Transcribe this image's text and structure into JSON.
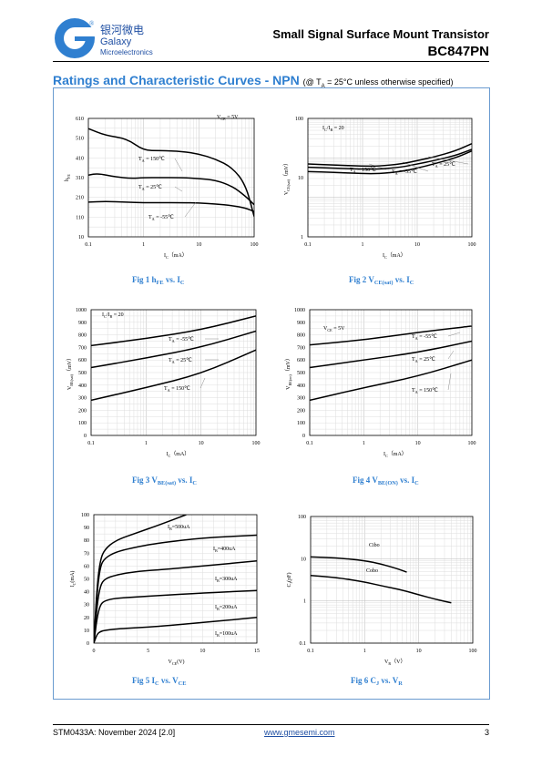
{
  "header": {
    "logo_cn": "银河微电",
    "logo_name": "Galaxy",
    "logo_sub": "Microelectronics",
    "title": "Small Signal Surface Mount Transistor",
    "part": "BC847PN"
  },
  "section": {
    "title": "Ratings and Characteristic Curves - NPN",
    "note": "(@ T",
    "note_sub": "A",
    "note_rest": " = 25°C unless otherwise specified)"
  },
  "colors": {
    "accent": "#2f7fd0",
    "frame": "#6a9bd0",
    "brand": "#1f4fa3"
  },
  "figures": [
    {
      "id": "fig1",
      "caption": "Fig 1   h",
      "cap_sub": "FE",
      "cap_rest": " vs. I",
      "cap_sub2": "C"
    },
    {
      "id": "fig2",
      "caption": "Fig 2   V",
      "cap_sub": "CE(sat)",
      "cap_rest": " vs. I",
      "cap_sub2": "C"
    },
    {
      "id": "fig3",
      "caption": "Fig 3   V",
      "cap_sub": "BE(sat)",
      "cap_rest": " vs. I",
      "cap_sub2": "C"
    },
    {
      "id": "fig4",
      "caption": "Fig 4   V",
      "cap_sub": "BE(ON)",
      "cap_rest": " vs. I",
      "cap_sub2": "C"
    },
    {
      "id": "fig5",
      "caption": "Fig 5   I",
      "cap_sub": "C",
      "cap_rest": " vs. V",
      "cap_sub2": "CE"
    },
    {
      "id": "fig6",
      "caption": "Fig 6   C",
      "cap_sub": "J",
      "cap_rest": " vs. V",
      "cap_sub2": "R"
    }
  ],
  "chart_data": [
    {
      "type": "line",
      "id": "fig1",
      "xscale": "log",
      "xlim": [
        0.1,
        100
      ],
      "ylim": [
        10,
        710
      ],
      "xticks": [
        "0.1",
        "1",
        "10",
        "100"
      ],
      "yticks": [
        "10",
        "110",
        "210",
        "310",
        "410",
        "510",
        "610"
      ],
      "ylabel": "h",
      "ylabel_sub": "FE",
      "xlabel": "I",
      "xlabel_sub": "C",
      "xlabel_unit": "（mA）",
      "annotations": [
        {
          "text": "V",
          "sub": "CE",
          "rest": " = 5V"
        }
      ],
      "series": [
        {
          "name": "T",
          "name_sub": "A",
          "name_rest": " = 150℃",
          "x": [
            0.1,
            0.2,
            0.5,
            1,
            2,
            5,
            10,
            20,
            40,
            70,
            100
          ],
          "y": [
            650,
            610,
            590,
            520,
            520,
            515,
            500,
            470,
            420,
            320,
            130
          ]
        },
        {
          "name": "T",
          "name_sub": "A",
          "name_rest": " = 25℃",
          "x": [
            0.1,
            0.15,
            0.3,
            0.6,
            1,
            2,
            5,
            10,
            20,
            40,
            70,
            100
          ],
          "y": [
            375,
            385,
            365,
            355,
            360,
            360,
            360,
            355,
            345,
            310,
            250,
            200
          ]
        },
        {
          "name": "T",
          "name_sub": "A",
          "name_rest": " = -55℃",
          "x": [
            0.1,
            0.2,
            0.5,
            1,
            2,
            5,
            10,
            20,
            40,
            70,
            100
          ],
          "y": [
            215,
            220,
            215,
            212,
            212,
            212,
            210,
            205,
            195,
            180,
            160
          ]
        }
      ]
    },
    {
      "type": "line",
      "id": "fig2",
      "xscale": "log",
      "yscale": "log",
      "xlim": [
        0.1,
        100
      ],
      "ylim": [
        1,
        1000
      ],
      "xticks": [
        "0.1",
        "1",
        "10",
        "100"
      ],
      "yticks": [
        "1",
        "10",
        "100"
      ],
      "ylabel": "V",
      "ylabel_sub": "CE(sat)",
      "ylabel_unit": "（mV）",
      "xlabel": "I",
      "xlabel_sub": "C",
      "xlabel_unit": "（mA）",
      "annotations": [
        {
          "text": "I",
          "sub": "C",
          "rest": "/I",
          "sub2": "B",
          "rest2": " = 20"
        }
      ],
      "series": [
        {
          "name": "T",
          "name_sub": "A",
          "name_rest": " = 150℃",
          "x": [
            0.1,
            0.3,
            1,
            2,
            5,
            10,
            20,
            50,
            100
          ],
          "y": [
            45,
            43,
            40,
            40,
            45,
            55,
            70,
            100,
            150
          ]
        },
        {
          "name": "T",
          "name_sub": "A",
          "name_rest": " = -55℃",
          "x": [
            0.1,
            0.3,
            1,
            2,
            5,
            10,
            20,
            50,
            100
          ],
          "y": [
            58,
            55,
            52,
            52,
            58,
            70,
            85,
            115,
            165
          ]
        },
        {
          "name": "T",
          "name_sub": "A",
          "name_rest": " = 25℃",
          "x": [
            0.1,
            0.3,
            1,
            2,
            5,
            10,
            20,
            50,
            100
          ],
          "y": [
            70,
            66,
            62,
            62,
            70,
            85,
            105,
            150,
            230
          ]
        }
      ]
    },
    {
      "type": "line",
      "id": "fig3",
      "xscale": "log",
      "xlim": [
        0.1,
        100
      ],
      "ylim": [
        0,
        1000
      ],
      "xticks": [
        "0.1",
        "1",
        "10",
        "100"
      ],
      "yticks": [
        "0",
        "100",
        "200",
        "300",
        "400",
        "500",
        "600",
        "700",
        "800",
        "900",
        "1000"
      ],
      "ylabel": "V",
      "ylabel_sub": "BE(sat)",
      "ylabel_unit": "（mV）",
      "xlabel": "I",
      "xlabel_sub": "C",
      "xlabel_unit": "（mA）",
      "annotations": [
        {
          "text": "I",
          "sub": "C",
          "rest": "/I",
          "sub2": "B",
          "rest2": " = 20"
        }
      ],
      "series": [
        {
          "name": "T",
          "name_sub": "A",
          "name_rest": " = -55℃",
          "x": [
            0.1,
            1,
            10,
            100
          ],
          "y": [
            715,
            770,
            840,
            950
          ]
        },
        {
          "name": "T",
          "name_sub": "A",
          "name_rest": " = 25℃",
          "x": [
            0.1,
            1,
            10,
            100
          ],
          "y": [
            540,
            615,
            700,
            830
          ]
        },
        {
          "name": "T",
          "name_sub": "A",
          "name_rest": " = 150℃",
          "x": [
            0.1,
            1,
            10,
            100
          ],
          "y": [
            280,
            380,
            490,
            680
          ]
        }
      ]
    },
    {
      "type": "line",
      "id": "fig4",
      "xscale": "log",
      "xlim": [
        0.1,
        100
      ],
      "ylim": [
        0,
        1000
      ],
      "xticks": [
        "0.1",
        "1",
        "10",
        "100"
      ],
      "yticks": [
        "0",
        "100",
        "200",
        "300",
        "400",
        "500",
        "600",
        "700",
        "800",
        "900",
        "1000"
      ],
      "ylabel": "V",
      "ylabel_sub": "BE(on)",
      "ylabel_unit": "（mV）",
      "xlabel": "I",
      "xlabel_sub": "C",
      "xlabel_unit": "（mA）",
      "annotations": [
        {
          "text": "V",
          "sub": "CE",
          "rest": " = 5V"
        }
      ],
      "series": [
        {
          "name": "T",
          "name_sub": "A",
          "name_rest": " = -55℃",
          "x": [
            0.1,
            1,
            10,
            100
          ],
          "y": [
            720,
            760,
            820,
            870
          ]
        },
        {
          "name": "T",
          "name_sub": "A",
          "name_rest": " = 25℃",
          "x": [
            0.1,
            1,
            10,
            100
          ],
          "y": [
            540,
            600,
            660,
            750
          ]
        },
        {
          "name": "T",
          "name_sub": "A",
          "name_rest": " = 150℃",
          "x": [
            0.1,
            1,
            10,
            100
          ],
          "y": [
            280,
            380,
            470,
            600
          ]
        }
      ]
    },
    {
      "type": "line",
      "id": "fig5",
      "xlim": [
        0,
        15
      ],
      "ylim": [
        0,
        100
      ],
      "xticks": [
        "0",
        "5",
        "10",
        "15"
      ],
      "yticks": [
        "0",
        "10",
        "20",
        "30",
        "40",
        "50",
        "60",
        "70",
        "80",
        "90",
        "100"
      ],
      "ylabel": "I",
      "ylabel_sub": "C",
      "ylabel_unit": "(mA)",
      "xlabel": "V",
      "xlabel_sub": "CE",
      "xlabel_unit": "(V)",
      "series": [
        {
          "name": "I",
          "name_sub": "B",
          "name_rest": "=500uA",
          "x": [
            0,
            0.3,
            0.6,
            1,
            2,
            4,
            6,
            8.5
          ],
          "y": [
            0,
            45,
            65,
            73,
            80,
            86,
            92,
            100
          ]
        },
        {
          "name": "I",
          "name_sub": "B",
          "name_rest": "=400uA",
          "x": [
            0,
            0.3,
            0.6,
            1,
            2,
            4,
            6,
            10,
            15
          ],
          "y": [
            0,
            40,
            60,
            66,
            71,
            75,
            78,
            82,
            84
          ]
        },
        {
          "name": "I",
          "name_sub": "B",
          "name_rest": "=300uA",
          "x": [
            0,
            0.3,
            0.6,
            1,
            2,
            4,
            6,
            10,
            15
          ],
          "y": [
            0,
            30,
            45,
            50,
            53,
            56,
            57,
            60,
            64
          ]
        },
        {
          "name": "I",
          "name_sub": "B",
          "name_rest": "=200uA",
          "x": [
            0,
            0.3,
            0.6,
            1,
            2,
            4,
            6,
            10,
            15
          ],
          "y": [
            0,
            20,
            30,
            33,
            35,
            36,
            37,
            39,
            41
          ]
        },
        {
          "name": "I",
          "name_sub": "B",
          "name_rest": "=100uA",
          "x": [
            0,
            0.3,
            0.6,
            1,
            2,
            4,
            6,
            10,
            15
          ],
          "y": [
            0,
            7,
            9,
            10,
            11,
            12,
            13,
            16,
            20
          ]
        }
      ]
    },
    {
      "type": "line",
      "id": "fig6",
      "xscale": "log",
      "yscale": "log",
      "xlim": [
        0.1,
        100
      ],
      "ylim": [
        0.1,
        100
      ],
      "xticks": [
        "0.1",
        "1",
        "10",
        "100"
      ],
      "yticks": [
        "0.1",
        "1",
        "10",
        "100"
      ],
      "ylabel": "C",
      "ylabel_sub": "J",
      "ylabel_unit": "(pF)",
      "xlabel": "V",
      "xlabel_sub": "R",
      "xlabel_unit": "（V）",
      "series": [
        {
          "name": "Cibo",
          "x": [
            0.1,
            0.3,
            1,
            2,
            4,
            6
          ],
          "y": [
            11,
            10.5,
            9,
            7.5,
            5.8,
            4.8
          ]
        },
        {
          "name": "Cobo",
          "x": [
            0.1,
            0.3,
            1,
            2,
            5,
            10,
            20,
            40
          ],
          "y": [
            4,
            3.6,
            2.8,
            2.3,
            1.8,
            1.4,
            1.1,
            0.9
          ]
        }
      ]
    }
  ],
  "footer": {
    "left": "STM0433A: November 2024 [2.0]",
    "mid": "www.gmesemi.com",
    "right": "3"
  }
}
